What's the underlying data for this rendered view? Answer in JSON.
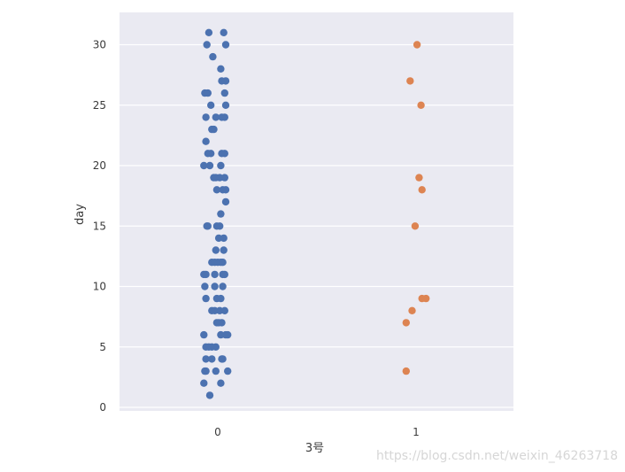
{
  "chart_data": {
    "type": "scatter",
    "style": "strip",
    "xlabel": "3号",
    "ylabel": "day",
    "categories": [
      "0",
      "1"
    ],
    "ylim": [
      -0.3,
      32.5
    ],
    "yticks": [
      0,
      5,
      10,
      15,
      20,
      25,
      30
    ],
    "grid": true,
    "background": "#eaeaf2",
    "series": [
      {
        "category": "0",
        "color": "#4c72b0",
        "points": [
          {
            "offset": -0.09,
            "y": 31
          },
          {
            "offset": 0.06,
            "y": 31
          },
          {
            "offset": -0.11,
            "y": 30
          },
          {
            "offset": 0.08,
            "y": 30
          },
          {
            "offset": -0.05,
            "y": 29
          },
          {
            "offset": 0.03,
            "y": 28
          },
          {
            "offset": 0.04,
            "y": 27
          },
          {
            "offset": 0.08,
            "y": 27
          },
          {
            "offset": -0.13,
            "y": 26
          },
          {
            "offset": -0.1,
            "y": 26
          },
          {
            "offset": 0.07,
            "y": 26
          },
          {
            "offset": -0.07,
            "y": 25
          },
          {
            "offset": 0.08,
            "y": 25
          },
          {
            "offset": -0.12,
            "y": 24
          },
          {
            "offset": -0.02,
            "y": 24
          },
          {
            "offset": 0.04,
            "y": 24
          },
          {
            "offset": 0.07,
            "y": 24
          },
          {
            "offset": -0.06,
            "y": 23
          },
          {
            "offset": -0.04,
            "y": 23
          },
          {
            "offset": -0.12,
            "y": 22
          },
          {
            "offset": -0.1,
            "y": 21
          },
          {
            "offset": -0.07,
            "y": 21
          },
          {
            "offset": 0.04,
            "y": 21
          },
          {
            "offset": 0.07,
            "y": 21
          },
          {
            "offset": -0.14,
            "y": 20
          },
          {
            "offset": -0.08,
            "y": 20
          },
          {
            "offset": 0.03,
            "y": 20
          },
          {
            "offset": -0.04,
            "y": 19
          },
          {
            "offset": -0.02,
            "y": 19
          },
          {
            "offset": 0.02,
            "y": 19
          },
          {
            "offset": 0.07,
            "y": 19
          },
          {
            "offset": -0.01,
            "y": 18
          },
          {
            "offset": 0.05,
            "y": 18
          },
          {
            "offset": 0.08,
            "y": 18
          },
          {
            "offset": 0.08,
            "y": 17
          },
          {
            "offset": 0.03,
            "y": 16
          },
          {
            "offset": -0.11,
            "y": 15
          },
          {
            "offset": -0.1,
            "y": 15
          },
          {
            "offset": -0.01,
            "y": 15
          },
          {
            "offset": 0.02,
            "y": 15
          },
          {
            "offset": 0.01,
            "y": 14
          },
          {
            "offset": 0.06,
            "y": 14
          },
          {
            "offset": -0.02,
            "y": 13
          },
          {
            "offset": 0.06,
            "y": 13
          },
          {
            "offset": -0.06,
            "y": 12
          },
          {
            "offset": -0.03,
            "y": 12
          },
          {
            "offset": 0.0,
            "y": 12
          },
          {
            "offset": 0.03,
            "y": 12
          },
          {
            "offset": 0.05,
            "y": 12
          },
          {
            "offset": -0.14,
            "y": 11
          },
          {
            "offset": -0.12,
            "y": 11
          },
          {
            "offset": -0.03,
            "y": 11
          },
          {
            "offset": 0.05,
            "y": 11
          },
          {
            "offset": 0.07,
            "y": 11
          },
          {
            "offset": -0.13,
            "y": 10
          },
          {
            "offset": -0.03,
            "y": 10
          },
          {
            "offset": 0.05,
            "y": 10
          },
          {
            "offset": -0.12,
            "y": 9
          },
          {
            "offset": -0.01,
            "y": 9
          },
          {
            "offset": 0.03,
            "y": 9
          },
          {
            "offset": -0.06,
            "y": 8
          },
          {
            "offset": -0.03,
            "y": 8
          },
          {
            "offset": 0.02,
            "y": 8
          },
          {
            "offset": 0.07,
            "y": 8
          },
          {
            "offset": -0.01,
            "y": 7
          },
          {
            "offset": 0.01,
            "y": 7
          },
          {
            "offset": 0.04,
            "y": 7
          },
          {
            "offset": -0.14,
            "y": 6
          },
          {
            "offset": 0.03,
            "y": 6
          },
          {
            "offset": 0.08,
            "y": 6
          },
          {
            "offset": 0.1,
            "y": 6
          },
          {
            "offset": -0.12,
            "y": 5
          },
          {
            "offset": -0.09,
            "y": 5
          },
          {
            "offset": -0.06,
            "y": 5
          },
          {
            "offset": -0.02,
            "y": 5
          },
          {
            "offset": -0.12,
            "y": 4
          },
          {
            "offset": -0.06,
            "y": 4
          },
          {
            "offset": 0.04,
            "y": 4
          },
          {
            "offset": 0.05,
            "y": 4
          },
          {
            "offset": -0.13,
            "y": 3
          },
          {
            "offset": -0.12,
            "y": 3
          },
          {
            "offset": -0.02,
            "y": 3
          },
          {
            "offset": 0.1,
            "y": 3
          },
          {
            "offset": -0.14,
            "y": 2
          },
          {
            "offset": 0.03,
            "y": 2
          },
          {
            "offset": -0.08,
            "y": 1
          }
        ]
      },
      {
        "category": "1",
        "color": "#dd8452",
        "points": [
          {
            "offset": 0.01,
            "y": 30
          },
          {
            "offset": -0.06,
            "y": 27
          },
          {
            "offset": 0.05,
            "y": 25
          },
          {
            "offset": 0.03,
            "y": 19
          },
          {
            "offset": 0.06,
            "y": 18
          },
          {
            "offset": -0.01,
            "y": 15
          },
          {
            "offset": 0.06,
            "y": 9
          },
          {
            "offset": 0.1,
            "y": 9
          },
          {
            "offset": -0.04,
            "y": 8
          },
          {
            "offset": -0.1,
            "y": 7
          },
          {
            "offset": -0.1,
            "y": 3
          }
        ]
      }
    ]
  },
  "watermark": "https://blog.csdn.net/weixin_46263718"
}
